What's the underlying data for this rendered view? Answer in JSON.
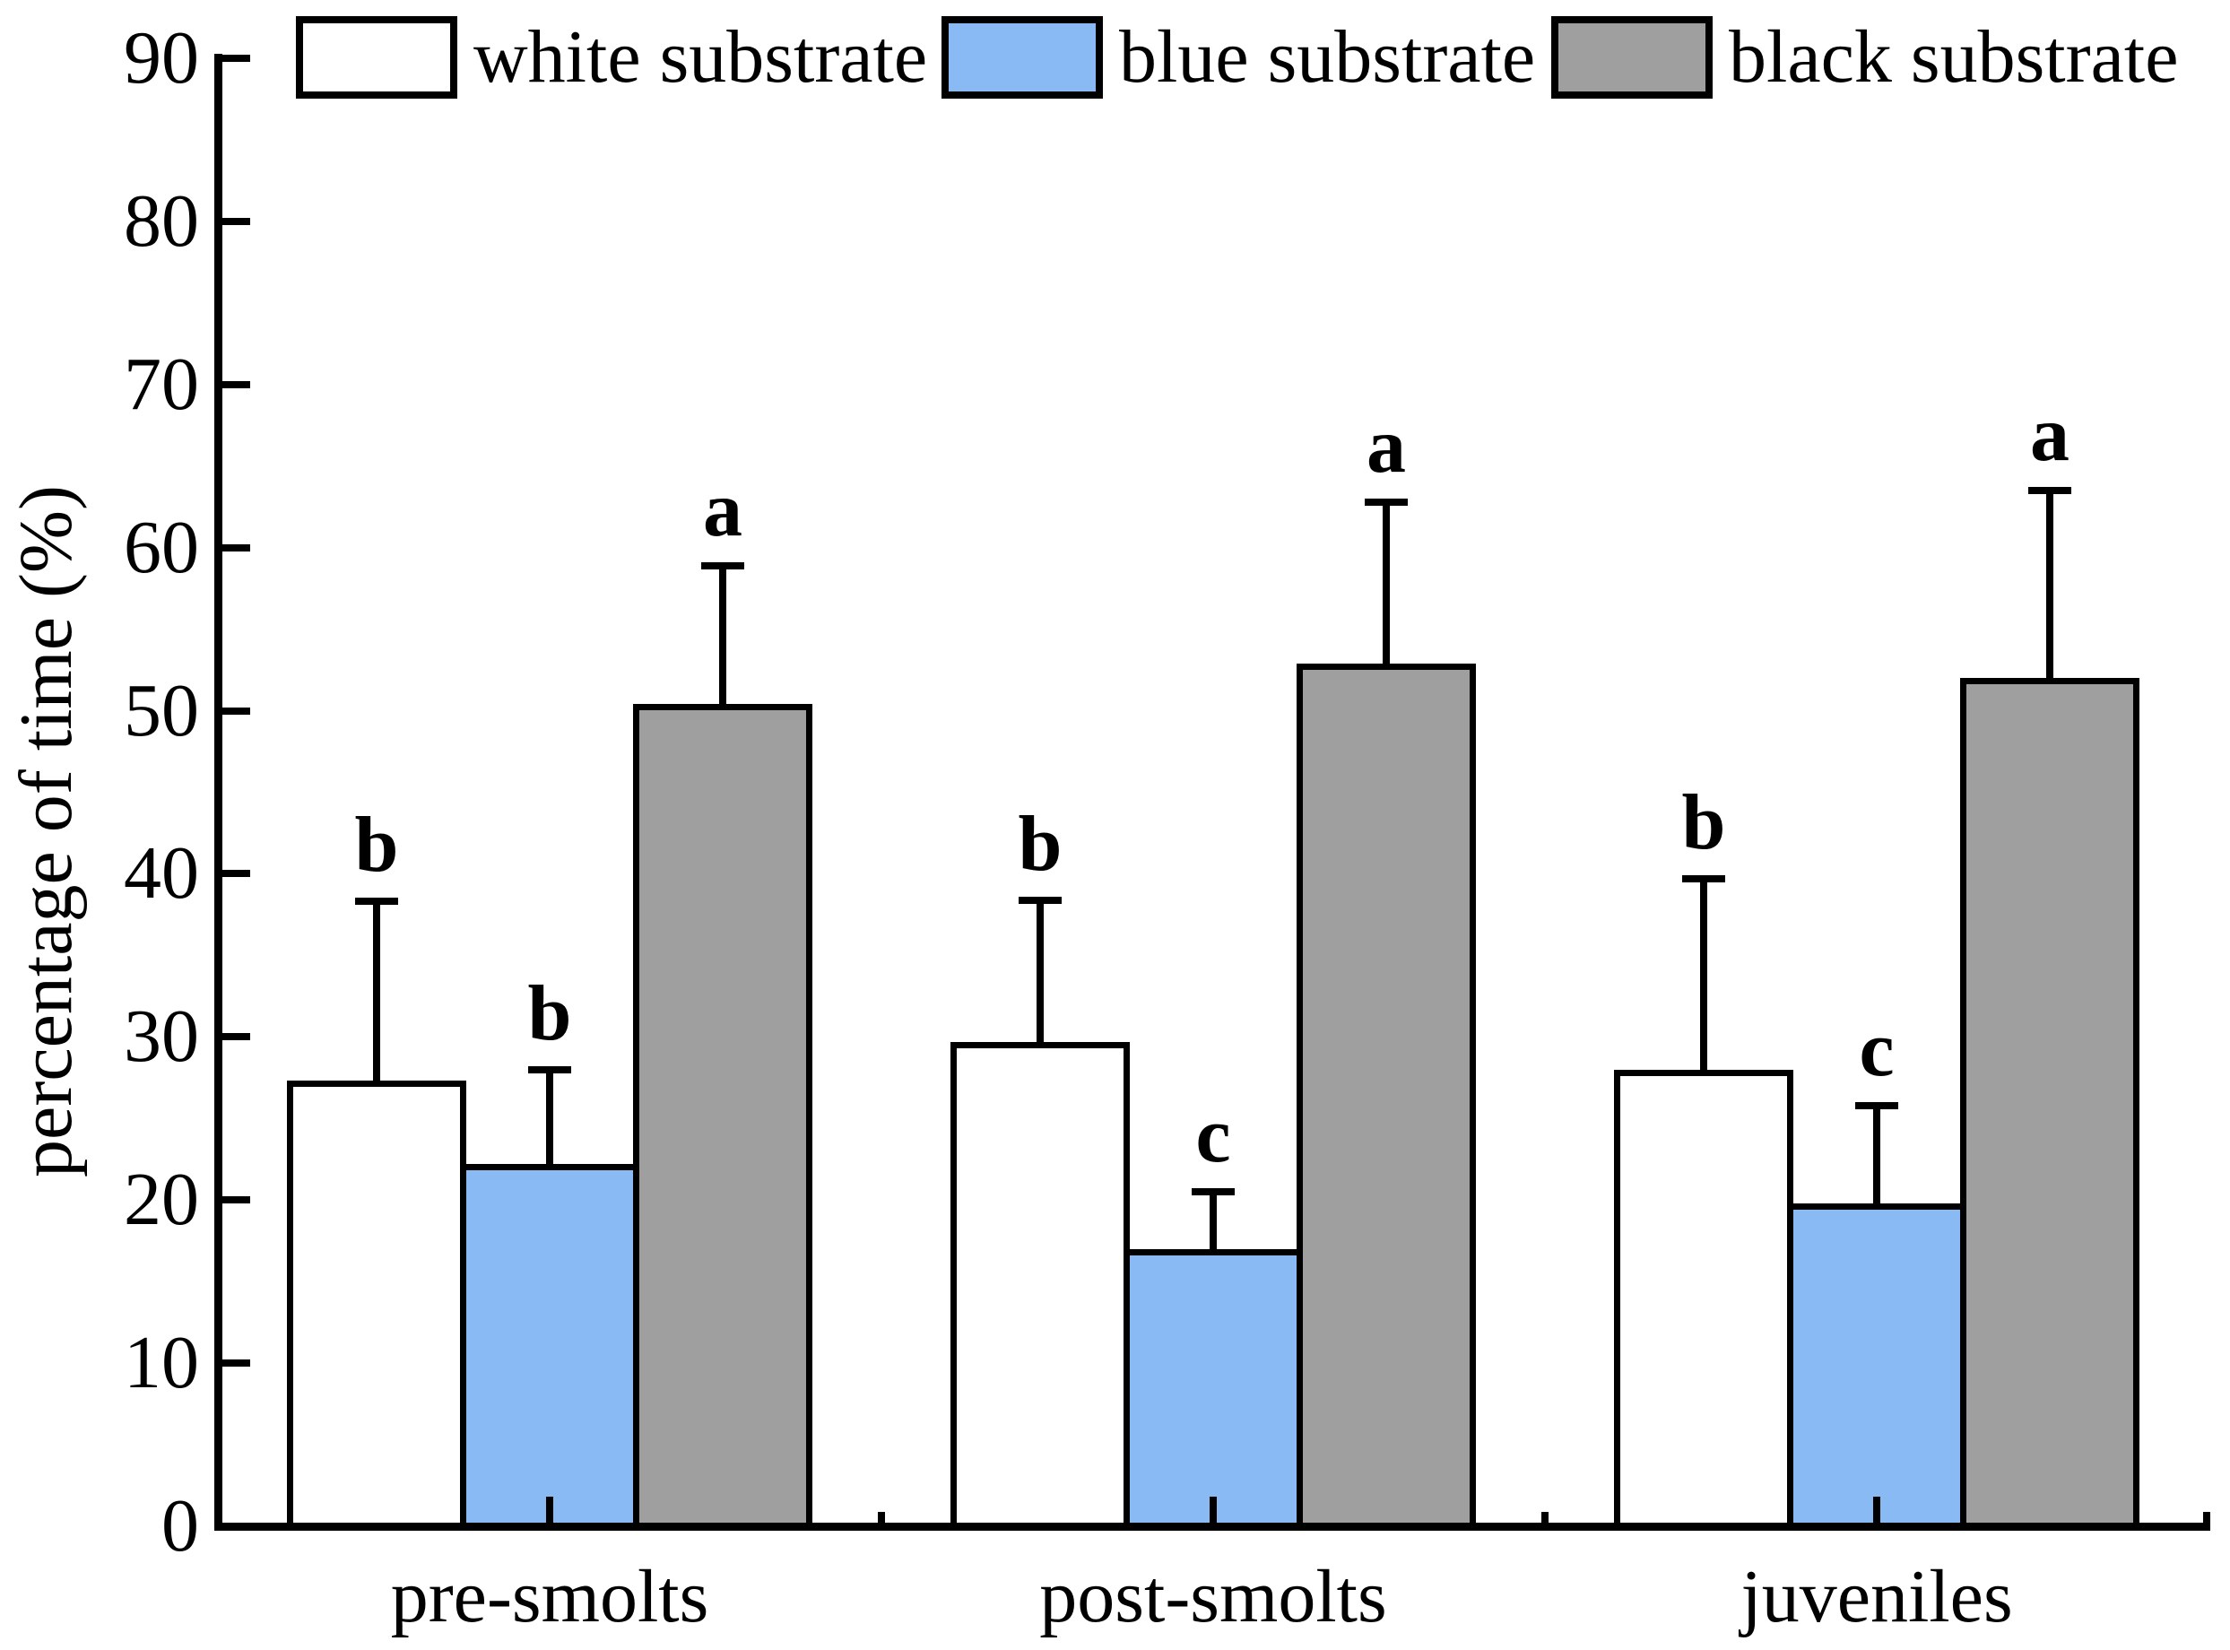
{
  "figure": {
    "background": "#ffffff",
    "axis_color": "#000000"
  },
  "chart_data": {
    "type": "bar",
    "title": "",
    "xlabel": "",
    "ylabel": "percentage of time (%)",
    "ylim": [
      0,
      90
    ],
    "yticks": [
      0,
      10,
      20,
      30,
      40,
      50,
      60,
      70,
      80,
      90
    ],
    "grid": false,
    "legend_position": "top",
    "categories": [
      "pre-smolts",
      "post-smolts",
      "juveniles"
    ],
    "series": [
      {
        "name": "white substrate",
        "fill": "#ffffff",
        "values": [
          27.3,
          29.7,
          28.0
        ],
        "error_up": [
          11.0,
          8.7,
          11.7
        ],
        "sig_letters": [
          "b",
          "b",
          "b"
        ]
      },
      {
        "name": "blue substrate",
        "fill": "#8ABAF4",
        "values": [
          22.2,
          17.0,
          19.8
        ],
        "error_up": [
          5.8,
          3.5,
          6.0
        ],
        "sig_letters": [
          "b",
          "c",
          "c"
        ]
      },
      {
        "name": "black substrate",
        "fill": "#9F9F9F",
        "values": [
          50.4,
          52.9,
          52.0
        ],
        "error_up": [
          8.5,
          9.9,
          11.5
        ],
        "sig_letters": [
          "a",
          "a",
          "a"
        ]
      }
    ]
  }
}
